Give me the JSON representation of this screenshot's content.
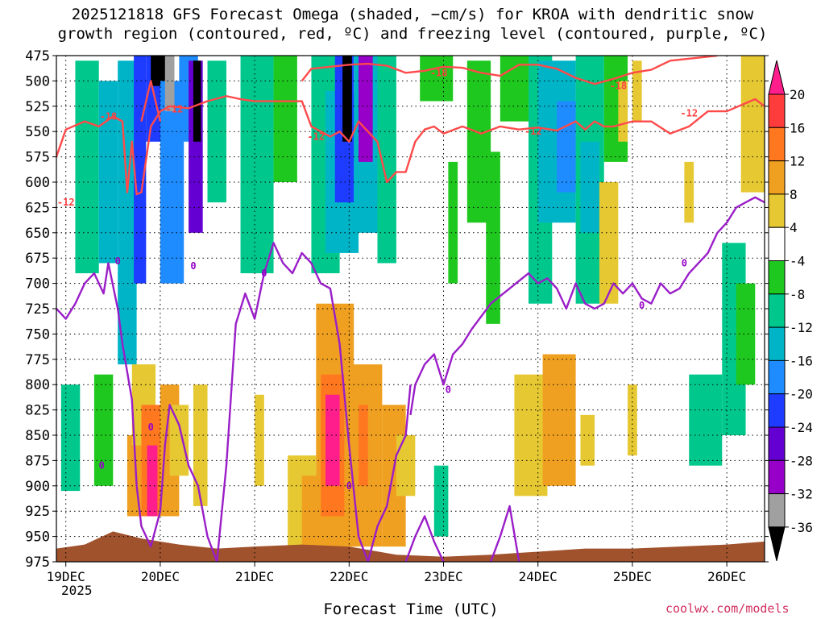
{
  "chart_data": {
    "type": "heatmap",
    "title_line1": "2025121818 GFS Forecast Omega (shaded, −cm/s) for KROA with dendritic snow",
    "title_line2": "growth region (contoured, red, ºC) and freezing level (contoured, purple, ºC)",
    "xlabel": "Forecast Time (UTC)",
    "credit": "coolwx.com/models",
    "y_ticks": [
      475,
      500,
      525,
      550,
      575,
      600,
      625,
      650,
      675,
      700,
      725,
      750,
      775,
      800,
      825,
      850,
      875,
      900,
      925,
      950,
      975
    ],
    "y_tick_labels": [
      "475",
      "500",
      "525",
      "550",
      "575",
      "600",
      "625",
      "650",
      "675",
      "700",
      "725",
      "750",
      "775",
      "800",
      "825",
      "850",
      "875",
      "900",
      "925",
      "950",
      "975"
    ],
    "ylim": [
      975,
      475
    ],
    "x_ticks": [
      0.0,
      1.0,
      2.0,
      3.0,
      4.0,
      5.0,
      6.0,
      7.0
    ],
    "x_tick_labels": [
      "19DEC",
      "20DEC",
      "21DEC",
      "22DEC",
      "23DEC",
      "24DEC",
      "25DEC",
      "26DEC"
    ],
    "x_year_label": "2025",
    "xlim": [
      -0.1,
      7.4
    ],
    "colorbar": {
      "ticks": [
        "20",
        "16",
        "12",
        "8",
        "4",
        "-4",
        "-8",
        "-12",
        "-16",
        "-20",
        "-24",
        "-28",
        "-32",
        "-36"
      ],
      "levels": [
        20,
        16,
        12,
        8,
        4,
        -4,
        -8,
        -12,
        -16,
        -20,
        -24,
        -28,
        -32,
        -36
      ],
      "colors": {
        "ge20": "#ff1e8c",
        "16-20": "#ff3c3c",
        "12-16": "#ff7820",
        "8-12": "#f0a020",
        "4-8": "#e6c832",
        "-4-4": "#ffffff",
        "-8--4": "#1ec81e",
        "-12--8": "#00c88c",
        "-16--12": "#00b4c8",
        "-20--16": "#1e8cff",
        "-24--20": "#1e3cff",
        "-28--24": "#6400d2",
        "-32--28": "#9600c8",
        "-36--32": "#a0a0a0",
        "le-36": "#000000"
      }
    },
    "omega_cells": [
      {
        "x0": -0.05,
        "x1": 0.15,
        "p0": 800,
        "p1": 905,
        "v": -8
      },
      {
        "x0": 0.1,
        "x1": 0.35,
        "p0": 480,
        "p1": 690,
        "v": -10
      },
      {
        "x0": 0.3,
        "x1": 0.5,
        "p0": 790,
        "p1": 900,
        "v": -6
      },
      {
        "x0": 0.35,
        "x1": 0.55,
        "p0": 500,
        "p1": 680,
        "v": -12
      },
      {
        "x0": 0.55,
        "x1": 0.75,
        "p0": 480,
        "p1": 780,
        "v": -14
      },
      {
        "x0": 0.65,
        "x1": 0.9,
        "p0": 850,
        "p1": 930,
        "v": 10
      },
      {
        "x0": 0.7,
        "x1": 0.95,
        "p0": 780,
        "p1": 860,
        "v": 6
      },
      {
        "x0": 0.72,
        "x1": 0.85,
        "p0": 475,
        "p1": 700,
        "v": -22
      },
      {
        "x0": 0.8,
        "x1": 1.05,
        "p0": 820,
        "p1": 930,
        "v": 12
      },
      {
        "x0": 0.86,
        "x1": 0.97,
        "p0": 860,
        "p1": 930,
        "v": 22
      },
      {
        "x0": 0.85,
        "x1": 1.1,
        "p0": 475,
        "p1": 560,
        "v": -20
      },
      {
        "x0": 0.9,
        "x1": 1.1,
        "p0": 475,
        "p1": 505,
        "v": -38
      },
      {
        "x0": 1.0,
        "x1": 1.25,
        "p0": 500,
        "p1": 700,
        "v": -16
      },
      {
        "x0": 1.0,
        "x1": 1.2,
        "p0": 800,
        "p1": 930,
        "v": 8
      },
      {
        "x0": 1.05,
        "x1": 1.15,
        "p0": 475,
        "p1": 530,
        "v": -34
      },
      {
        "x0": 1.1,
        "x1": 1.3,
        "p0": 820,
        "p1": 890,
        "v": 6
      },
      {
        "x0": 1.2,
        "x1": 1.4,
        "p0": 475,
        "p1": 560,
        "v": -18
      },
      {
        "x0": 1.3,
        "x1": 1.45,
        "p0": 480,
        "p1": 650,
        "v": -26
      },
      {
        "x0": 1.35,
        "x1": 1.43,
        "p0": 480,
        "p1": 560,
        "v": -38
      },
      {
        "x0": 1.35,
        "x1": 1.5,
        "p0": 800,
        "p1": 920,
        "v": 6
      },
      {
        "x0": 1.5,
        "x1": 1.7,
        "p0": 480,
        "p1": 620,
        "v": -10
      },
      {
        "x0": 1.85,
        "x1": 2.2,
        "p0": 475,
        "p1": 690,
        "v": -8
      },
      {
        "x0": 2.2,
        "x1": 2.45,
        "p0": 475,
        "p1": 600,
        "v": -6
      },
      {
        "x0": 2.6,
        "x1": 2.9,
        "p0": 475,
        "p1": 690,
        "v": -8
      },
      {
        "x0": 2.75,
        "x1": 3.1,
        "p0": 510,
        "p1": 670,
        "v": -12
      },
      {
        "x0": 2.85,
        "x1": 3.05,
        "p0": 475,
        "p1": 620,
        "v": -20
      },
      {
        "x0": 2.93,
        "x1": 3.03,
        "p0": 475,
        "p1": 560,
        "v": -38
      },
      {
        "x0": 3.05,
        "x1": 3.35,
        "p0": 475,
        "p1": 650,
        "v": -14
      },
      {
        "x0": 3.1,
        "x1": 3.25,
        "p0": 475,
        "p1": 580,
        "v": -28
      },
      {
        "x0": 3.3,
        "x1": 3.5,
        "p0": 475,
        "p1": 680,
        "v": -8
      },
      {
        "x0": 2.35,
        "x1": 2.65,
        "p0": 870,
        "p1": 960,
        "v": 6
      },
      {
        "x0": 2.5,
        "x1": 2.8,
        "p0": 890,
        "p1": 960,
        "v": 10
      },
      {
        "x0": 2.65,
        "x1": 3.05,
        "p0": 720,
        "p1": 960,
        "v": 10
      },
      {
        "x0": 2.7,
        "x1": 2.95,
        "p0": 790,
        "p1": 930,
        "v": 14
      },
      {
        "x0": 2.75,
        "x1": 2.9,
        "p0": 810,
        "p1": 900,
        "v": 20
      },
      {
        "x0": 2.95,
        "x1": 3.35,
        "p0": 780,
        "p1": 960,
        "v": 10
      },
      {
        "x0": 3.1,
        "x1": 3.2,
        "p0": 820,
        "p1": 900,
        "v": 14
      },
      {
        "x0": 3.35,
        "x1": 3.6,
        "p0": 820,
        "p1": 960,
        "v": 10
      },
      {
        "x0": 3.5,
        "x1": 3.7,
        "p0": 850,
        "p1": 910,
        "v": 6
      },
      {
        "x0": 2.0,
        "x1": 2.1,
        "p0": 810,
        "p1": 900,
        "v": 6
      },
      {
        "x0": 3.9,
        "x1": 4.05,
        "p0": 880,
        "p1": 950,
        "v": -8
      },
      {
        "x0": 3.75,
        "x1": 4.1,
        "p0": 475,
        "p1": 520,
        "v": -6
      },
      {
        "x0": 4.05,
        "x1": 4.15,
        "p0": 580,
        "p1": 700,
        "v": -6
      },
      {
        "x0": 4.25,
        "x1": 4.5,
        "p0": 480,
        "p1": 640,
        "v": -6
      },
      {
        "x0": 4.45,
        "x1": 4.6,
        "p0": 570,
        "p1": 740,
        "v": -6
      },
      {
        "x0": 4.6,
        "x1": 4.9,
        "p0": 475,
        "p1": 540,
        "v": -6
      },
      {
        "x0": 4.9,
        "x1": 5.15,
        "p0": 475,
        "p1": 720,
        "v": -8
      },
      {
        "x0": 5.0,
        "x1": 5.4,
        "p0": 480,
        "p1": 640,
        "v": -12
      },
      {
        "x0": 5.2,
        "x1": 5.45,
        "p0": 520,
        "p1": 610,
        "v": -16
      },
      {
        "x0": 5.4,
        "x1": 5.7,
        "p0": 475,
        "p1": 720,
        "v": -8
      },
      {
        "x0": 5.45,
        "x1": 5.65,
        "p0": 560,
        "p1": 650,
        "v": -14
      },
      {
        "x0": 5.7,
        "x1": 5.95,
        "p0": 475,
        "p1": 580,
        "v": -6
      },
      {
        "x0": 4.75,
        "x1": 5.1,
        "p0": 790,
        "p1": 910,
        "v": 6
      },
      {
        "x0": 5.05,
        "x1": 5.4,
        "p0": 770,
        "p1": 900,
        "v": 8
      },
      {
        "x0": 5.15,
        "x1": 5.35,
        "p0": 800,
        "p1": 880,
        "v": 10
      },
      {
        "x0": 5.45,
        "x1": 5.6,
        "p0": 830,
        "p1": 880,
        "v": 6
      },
      {
        "x0": 5.65,
        "x1": 5.85,
        "p0": 600,
        "p1": 720,
        "v": 6
      },
      {
        "x0": 5.95,
        "x1": 6.05,
        "p0": 800,
        "p1": 870,
        "v": 6
      },
      {
        "x0": 5.85,
        "x1": 5.95,
        "p0": 500,
        "p1": 560,
        "v": 6
      },
      {
        "x0": 6.0,
        "x1": 6.1,
        "p0": 480,
        "p1": 540,
        "v": 6
      },
      {
        "x0": 6.55,
        "x1": 6.65,
        "p0": 580,
        "p1": 640,
        "v": 6
      },
      {
        "x0": 6.6,
        "x1": 6.95,
        "p0": 790,
        "p1": 880,
        "v": -8
      },
      {
        "x0": 6.95,
        "x1": 7.2,
        "p0": 660,
        "p1": 850,
        "v": -8
      },
      {
        "x0": 7.1,
        "x1": 7.3,
        "p0": 700,
        "p1": 800,
        "v": -6
      },
      {
        "x0": 7.15,
        "x1": 7.4,
        "p0": 475,
        "p1": 610,
        "v": 6
      }
    ],
    "snow_growth_contours": [
      {
        "label": "-12",
        "x": [
          -0.1,
          0.0,
          0.2,
          0.35,
          0.5,
          0.6,
          0.65,
          0.7,
          0.75,
          0.8,
          0.9,
          1.0,
          1.1,
          1.3,
          1.5,
          1.7,
          1.85,
          2.0,
          2.3,
          2.5,
          2.6,
          2.7,
          2.8,
          2.9,
          3.0,
          3.1,
          3.3,
          3.4,
          3.5,
          3.6,
          3.7,
          3.8,
          3.9,
          4.0,
          4.2,
          4.4,
          4.6,
          4.8,
          5.0,
          5.2,
          5.4,
          5.5,
          5.6,
          5.7,
          5.8,
          6.0,
          6.2,
          6.4,
          6.6,
          6.8,
          7.0,
          7.2,
          7.3,
          7.4
        ],
        "p": [
          575,
          548,
          540,
          545,
          535,
          540,
          610,
          560,
          612,
          610,
          545,
          530,
          525,
          527,
          520,
          515,
          518,
          520,
          520,
          520,
          545,
          550,
          555,
          550,
          560,
          540,
          560,
          600,
          590,
          590,
          560,
          548,
          545,
          552,
          545,
          552,
          545,
          548,
          546,
          549,
          540,
          548,
          540,
          545,
          545,
          540,
          540,
          552,
          545,
          530,
          530,
          522,
          518,
          525
        ]
      },
      {
        "label": "-18",
        "x": [
          2.5,
          2.6,
          2.8,
          3.0,
          3.2,
          3.4,
          3.6,
          3.8,
          4.0,
          4.2,
          4.4,
          4.6,
          4.8,
          5.0,
          5.2,
          5.4,
          5.6,
          5.8,
          6.0,
          6.2,
          6.4,
          6.6,
          6.8,
          6.9
        ],
        "p": [
          500,
          488,
          486,
          484,
          483,
          485,
          492,
          490,
          486,
          487,
          492,
          495,
          484,
          484,
          488,
          497,
          503,
          498,
          492,
          489,
          480,
          478,
          476,
          475
        ]
      },
      {
        "label": "-18",
        "x": [
          0.8,
          0.9,
          1.0
        ],
        "p": [
          540,
          500,
          540
        ]
      }
    ],
    "freezing_level_contours": [
      {
        "label": "0",
        "x": [
          -0.1,
          0.0,
          0.1,
          0.2,
          0.3,
          0.4,
          0.45,
          0.55,
          0.6,
          0.7,
          0.75,
          0.8,
          0.9,
          1.0,
          1.05,
          1.1,
          1.2,
          1.3,
          1.4,
          1.5,
          1.6,
          1.7,
          1.8,
          1.9,
          2.0,
          2.1,
          2.2,
          2.3,
          2.4,
          2.5,
          2.6,
          2.7,
          2.8,
          2.9,
          3.0,
          3.1,
          3.2,
          3.3,
          3.4,
          3.5,
          3.6,
          3.65
        ],
        "p": [
          725,
          735,
          720,
          700,
          690,
          710,
          680,
          725,
          760,
          815,
          900,
          940,
          960,
          925,
          860,
          820,
          840,
          880,
          900,
          950,
          975,
          880,
          740,
          710,
          735,
          690,
          660,
          680,
          690,
          670,
          680,
          700,
          705,
          760,
          860,
          950,
          975,
          940,
          920,
          870,
          850,
          800
        ]
      },
      {
        "label": "0",
        "x": [
          3.65,
          3.7,
          3.8,
          3.9,
          4.0,
          4.1,
          4.2,
          4.3,
          4.5,
          4.7,
          4.9,
          5.0,
          5.1,
          5.2,
          5.3,
          5.4,
          5.5,
          5.6,
          5.7,
          5.8,
          5.9,
          6.0,
          6.1,
          6.2,
          6.3,
          6.4,
          6.5,
          6.6,
          6.7,
          6.8,
          6.9,
          7.0,
          7.1,
          7.2,
          7.3,
          7.4
        ],
        "p": [
          830,
          800,
          780,
          770,
          800,
          770,
          760,
          745,
          720,
          705,
          690,
          700,
          695,
          705,
          725,
          700,
          720,
          725,
          720,
          700,
          710,
          700,
          715,
          720,
          700,
          710,
          705,
          690,
          680,
          670,
          650,
          640,
          625,
          620,
          615,
          620
        ]
      },
      {
        "label": "0",
        "x": [
          3.6,
          3.7,
          3.8,
          3.9,
          4.0
        ],
        "p": [
          975,
          950,
          930,
          955,
          975
        ]
      },
      {
        "label": "0",
        "x": [
          4.5,
          4.6,
          4.7,
          4.8
        ],
        "p": [
          975,
          950,
          920,
          975
        ]
      }
    ],
    "contour_label_positions": [
      {
        "text": "-12",
        "x": 0.0,
        "p": 620,
        "color": "#ff4040"
      },
      {
        "text": "-18",
        "x": 0.45,
        "p": 535,
        "color": "#ff4040"
      },
      {
        "text": "-12",
        "x": 1.15,
        "p": 528,
        "color": "#ff4040"
      },
      {
        "text": "-12",
        "x": 2.65,
        "p": 555,
        "color": "#ff4040"
      },
      {
        "text": "-18",
        "x": 3.95,
        "p": 492,
        "color": "#ff4040"
      },
      {
        "text": "-12",
        "x": 4.95,
        "p": 550,
        "color": "#ff4040"
      },
      {
        "text": "-18",
        "x": 5.85,
        "p": 505,
        "color": "#ff4040"
      },
      {
        "text": "-12",
        "x": 6.6,
        "p": 532,
        "color": "#ff4040"
      },
      {
        "text": "0",
        "x": 0.55,
        "p": 678,
        "color": "#9600c8"
      },
      {
        "text": "0",
        "x": 1.35,
        "p": 683,
        "color": "#9600c8"
      },
      {
        "text": "0",
        "x": 0.9,
        "p": 842,
        "color": "#9600c8"
      },
      {
        "text": "0",
        "x": 0.38,
        "p": 880,
        "color": "#9600c8"
      },
      {
        "text": "0",
        "x": 2.1,
        "p": 690,
        "color": "#9600c8"
      },
      {
        "text": "0",
        "x": 3.0,
        "p": 900,
        "color": "#9600c8"
      },
      {
        "text": "0",
        "x": 4.05,
        "p": 805,
        "color": "#9600c8"
      },
      {
        "text": "0",
        "x": 6.1,
        "p": 722,
        "color": "#9600c8"
      },
      {
        "text": "0",
        "x": 6.55,
        "p": 680,
        "color": "#9600c8"
      }
    ],
    "terrain": {
      "color": "#a0522d",
      "x": [
        -0.1,
        0.2,
        0.5,
        0.8,
        1.2,
        1.6,
        2.0,
        2.5,
        3.0,
        3.5,
        4.0,
        4.5,
        5.0,
        5.5,
        6.0,
        6.5,
        7.0,
        7.4
      ],
      "p": [
        962,
        958,
        945,
        952,
        958,
        962,
        960,
        958,
        960,
        968,
        970,
        968,
        965,
        962,
        962,
        960,
        958,
        955
      ]
    }
  }
}
